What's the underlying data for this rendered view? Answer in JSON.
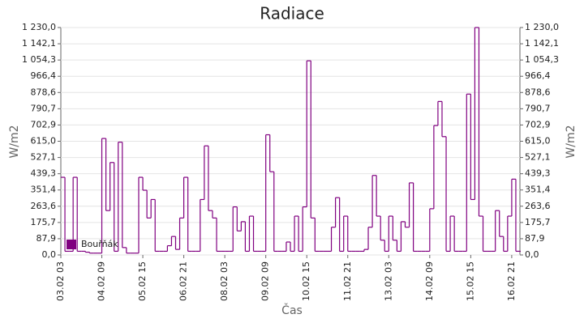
{
  "chart_data": {
    "type": "step-line",
    "title": "Radiace",
    "x_label": "Čas",
    "y_label": "W/m2",
    "categories": [
      "03.02 03",
      null,
      null,
      null,
      null,
      null,
      null,
      null,
      null,
      null,
      "04.02 09",
      null,
      null,
      null,
      null,
      null,
      null,
      null,
      null,
      null,
      "05.02 15",
      null,
      null,
      null,
      null,
      null,
      null,
      null,
      null,
      null,
      "06.02 21",
      null,
      null,
      null,
      null,
      null,
      null,
      null,
      null,
      null,
      "08.02 03",
      null,
      null,
      null,
      null,
      null,
      null,
      null,
      null,
      null,
      "09.02 09",
      null,
      null,
      null,
      null,
      null,
      null,
      null,
      null,
      null,
      "10.02 15",
      null,
      null,
      null,
      null,
      null,
      null,
      null,
      null,
      null,
      "11.02 21",
      null,
      null,
      null,
      null,
      null,
      null,
      null,
      null,
      null,
      "13.02 03",
      null,
      null,
      null,
      null,
      null,
      null,
      null,
      null,
      null,
      "14.02 09",
      null,
      null,
      null,
      null,
      null,
      null,
      null,
      null,
      null,
      "15.02 15",
      null,
      null,
      null,
      null,
      null,
      null,
      null,
      null,
      null,
      "16.02 21",
      null,
      null
    ],
    "series": [
      {
        "name": "Bouřňák",
        "color": "#800080",
        "values": [
          420,
          20,
          20,
          420,
          20,
          20,
          15,
          10,
          10,
          10,
          630,
          240,
          500,
          20,
          610,
          40,
          10,
          10,
          10,
          420,
          350,
          200,
          300,
          20,
          20,
          20,
          50,
          100,
          30,
          200,
          420,
          20,
          20,
          20,
          300,
          590,
          240,
          200,
          20,
          20,
          20,
          20,
          260,
          130,
          180,
          20,
          210,
          20,
          20,
          20,
          650,
          450,
          20,
          20,
          20,
          70,
          20,
          210,
          20,
          260,
          1050,
          200,
          20,
          20,
          20,
          20,
          150,
          310,
          20,
          210,
          20,
          20,
          20,
          20,
          30,
          150,
          430,
          210,
          80,
          20,
          210,
          80,
          20,
          180,
          150,
          390,
          20,
          20,
          20,
          20,
          250,
          700,
          830,
          640,
          20,
          210,
          20,
          20,
          20,
          870,
          300,
          1230,
          210,
          20,
          20,
          20,
          240,
          100,
          20,
          210,
          410,
          20,
          20
        ]
      }
    ],
    "ylim": [
      0,
      1230
    ],
    "yticks": [
      {
        "value": 0,
        "label": "0,0"
      },
      {
        "value": 87.9,
        "label": "87,9"
      },
      {
        "value": 175.7,
        "label": "175,7"
      },
      {
        "value": 263.6,
        "label": "263,6"
      },
      {
        "value": 351.4,
        "label": "351,4"
      },
      {
        "value": 439.3,
        "label": "439,3"
      },
      {
        "value": 527.1,
        "label": "527,1"
      },
      {
        "value": 615,
        "label": "615,0"
      },
      {
        "value": 702.9,
        "label": "702,9"
      },
      {
        "value": 790.7,
        "label": "790,7"
      },
      {
        "value": 878.6,
        "label": "878,6"
      },
      {
        "value": 966.4,
        "label": "966,4"
      },
      {
        "value": 1054.3,
        "label": "1 054,3"
      },
      {
        "value": 1142.1,
        "label": "1 142,1"
      },
      {
        "value": 1230,
        "label": "1 230,0"
      }
    ],
    "grid": true
  }
}
